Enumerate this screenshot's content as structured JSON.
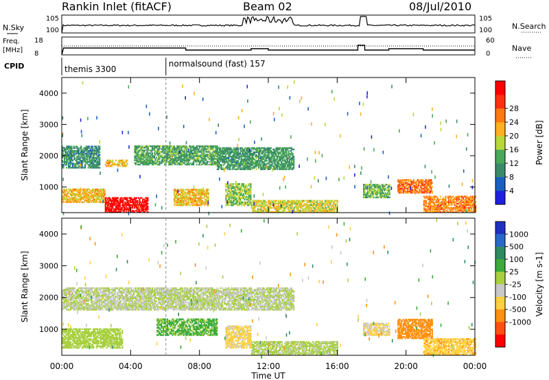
{
  "header": {
    "station": "Rankin Inlet (fitACF)",
    "beam": "Beam 02",
    "date": "08/Jul/2010"
  },
  "summary_panels": {
    "nsky": {
      "label": "N.Sky",
      "ticks": [
        "10^5",
        "10^0"
      ]
    },
    "nsearch": {
      "label": "N.Search",
      "ticks": [
        "10^5",
        "10^0"
      ]
    },
    "freq": {
      "label_line1": "Freq.",
      "label_line2": "[MHz]",
      "ticks": [
        "18",
        "8"
      ]
    },
    "nave": {
      "label": "Nave",
      "ticks": [
        "60",
        "0"
      ]
    },
    "cpid": {
      "label": "CPID",
      "segments": [
        "themis 3300",
        "normalsound (fast) 157"
      ]
    }
  },
  "colors": {
    "power_scale": [
      "#2020e0",
      "#1a5fc0",
      "#3a8a6a",
      "#4aa85a",
      "#b8d83a",
      "#ffb020",
      "#ff7a10",
      "#ff3010",
      "#ff0000"
    ],
    "velocity_scale": [
      "#2030c0",
      "#2868c8",
      "#2e8a60",
      "#3caa3c",
      "#a8d040",
      "#c8c8c8",
      "#ffd040",
      "#ff9010",
      "#ff5010",
      "#ff0000"
    ]
  },
  "chart_data": [
    {
      "type": "heatmap",
      "title": "Power",
      "xlabel": "",
      "ylabel": "Slant Range [km]",
      "x_ticks": [
        "00:00",
        "04:00",
        "08:00",
        "12:00",
        "16:00",
        "20:00",
        "00:00"
      ],
      "y_ticks": [
        "1000",
        "2000",
        "3000",
        "4000"
      ],
      "ylim": [
        180,
        4500
      ],
      "colorbar": {
        "label": "Power [dB]",
        "ticks": [
          "4",
          "8",
          "12",
          "16",
          "20",
          "24",
          "28"
        ],
        "range": [
          0,
          30
        ]
      },
      "features": [
        {
          "t": [
            0.0,
            2.2
          ],
          "range": [
            1600,
            2300
          ],
          "value": 9
        },
        {
          "t": [
            2.5,
            3.8
          ],
          "range": [
            1650,
            1850
          ],
          "value": 18
        },
        {
          "t": [
            4.2,
            9.0
          ],
          "range": [
            1700,
            2300
          ],
          "value": 11
        },
        {
          "t": [
            9.0,
            13.5
          ],
          "range": [
            1550,
            2250
          ],
          "value": 10
        },
        {
          "t": [
            0.0,
            2.5
          ],
          "range": [
            500,
            950
          ],
          "value": 18
        },
        {
          "t": [
            2.5,
            5.0
          ],
          "range": [
            180,
            650
          ],
          "value": 29
        },
        {
          "t": [
            6.5,
            8.5
          ],
          "range": [
            400,
            900
          ],
          "value": 18
        },
        {
          "t": [
            9.5,
            11.0
          ],
          "range": [
            400,
            1100
          ],
          "value": 14
        },
        {
          "t": [
            11.0,
            16.0
          ],
          "range": [
            180,
            550
          ],
          "value": 16
        },
        {
          "t": [
            17.5,
            19.0
          ],
          "range": [
            650,
            1100
          ],
          "value": 12
        },
        {
          "t": [
            19.5,
            21.5
          ],
          "range": [
            800,
            1250
          ],
          "value": 22
        },
        {
          "t": [
            21.0,
            24.0
          ],
          "range": [
            180,
            700
          ],
          "value": 21
        }
      ]
    },
    {
      "type": "heatmap",
      "title": "Velocity",
      "xlabel": "Time UT",
      "ylabel": "Slant Range [km]",
      "x_ticks": [
        "00:00",
        "04:00",
        "08:00",
        "12:00",
        "16:00",
        "20:00",
        "00:00"
      ],
      "y_ticks": [
        "1000",
        "2000",
        "3000",
        "4000"
      ],
      "ylim": [
        180,
        4500
      ],
      "colorbar": {
        "label": "Velocity [m s-1]",
        "ticks": [
          "1000",
          "500",
          "100",
          "25",
          "-25",
          "-100",
          "-500",
          "-1000"
        ],
        "range": [
          -1200,
          1200
        ]
      },
      "features": [
        {
          "t": [
            0.0,
            13.5
          ],
          "range": [
            1600,
            2300
          ],
          "value": 0
        },
        {
          "t": [
            0.0,
            3.5
          ],
          "range": [
            400,
            1000
          ],
          "value": 120
        },
        {
          "t": [
            5.5,
            9.0
          ],
          "range": [
            800,
            1300
          ],
          "value": 300
        },
        {
          "t": [
            9.5,
            11.0
          ],
          "range": [
            400,
            1100
          ],
          "value": -300
        },
        {
          "t": [
            11.0,
            16.0
          ],
          "range": [
            180,
            600
          ],
          "value": 60
        },
        {
          "t": [
            17.5,
            19.0
          ],
          "range": [
            800,
            1200
          ],
          "value": -250
        },
        {
          "t": [
            19.5,
            21.5
          ],
          "range": [
            700,
            1300
          ],
          "value": -600
        },
        {
          "t": [
            21.0,
            24.0
          ],
          "range": [
            180,
            700
          ],
          "value": -400
        }
      ]
    }
  ]
}
